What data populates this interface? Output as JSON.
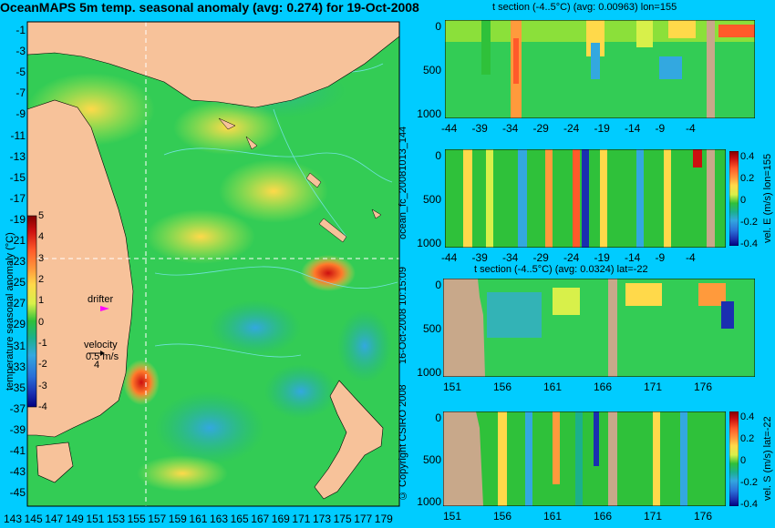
{
  "title": "OceanMAPS 5m temp. seasonal anomaly (avg: 0.274) for 19-Oct-2008",
  "map": {
    "lat_ticks": [
      "-1",
      "-3",
      "-5",
      "-7",
      "-9",
      "-11",
      "-13",
      "-15",
      "-17",
      "-19",
      "-21",
      "-23",
      "-25",
      "-27",
      "-29",
      "-31",
      "-33",
      "-35",
      "-37",
      "-39",
      "-41",
      "-43",
      "-45"
    ],
    "lon_ticks": [
      "143",
      "145",
      "147",
      "149",
      "151",
      "153",
      "155",
      "157",
      "159",
      "161",
      "163",
      "165",
      "167",
      "169",
      "171",
      "173",
      "175",
      "177",
      "179"
    ],
    "colorbar": {
      "label": "temperature seasonal anomaly (°C)",
      "ticks": [
        "5",
        "4",
        "3",
        "2",
        "1",
        "0",
        "-1",
        "-2",
        "-3",
        "-4"
      ],
      "colors": [
        "#800000",
        "#cc1010",
        "#ff5a2a",
        "#ff9a3c",
        "#ffd94a",
        "#d8f04a",
        "#8be03a",
        "#2fc13a",
        "#1bb08c",
        "#33a8e0",
        "#2a6fd8",
        "#1a2fb0",
        "#000080"
      ]
    },
    "drifter_label": "drifter",
    "velocity_label": "velocity",
    "velocity_value": "0.5 m/s",
    "velocity_scale": "4"
  },
  "panels": [
    {
      "title": "t section (-4..5°C) (avg: 0.00963) lon=155",
      "x_ticks": [
        "-44",
        "-39",
        "-34",
        "-29",
        "-24",
        "-19",
        "-14",
        "-9",
        "-4"
      ],
      "y_ticks": [
        "0",
        "500",
        "1000"
      ]
    },
    {
      "title": "",
      "x_ticks": [
        "-44",
        "-39",
        "-34",
        "-29",
        "-24",
        "-19",
        "-14",
        "-9",
        "-4"
      ],
      "y_ticks": [
        "0",
        "500",
        "1000"
      ],
      "colorbar_label": "vel. E (m/s) lon=155",
      "colorbar_ticks": [
        "0.4",
        "0.2",
        "0",
        "-0.2",
        "-0.4"
      ]
    },
    {
      "title": "t section (-4..5°C) (avg: 0.0324) lat=-22",
      "x_ticks": [
        "151",
        "156",
        "161",
        "166",
        "171",
        "176"
      ],
      "y_ticks": [
        "0",
        "500",
        "1000"
      ]
    },
    {
      "title": "",
      "x_ticks": [
        "151",
        "156",
        "161",
        "166",
        "171",
        "176"
      ],
      "y_ticks": [
        "0",
        "500",
        "1000"
      ],
      "colorbar_label": "vel. S (m/s) lat=-22",
      "colorbar_ticks": [
        "0.4",
        "0.2",
        "0",
        "-0.2",
        "-0.4"
      ]
    }
  ],
  "side_labels": {
    "forecast_id": "ocean_fc_20081013_144",
    "timestamp": "16-Oct-2008 10:15:09",
    "copyright": "© Copyright CSIRO 2008"
  },
  "colors": {
    "background": "#00ccff",
    "land": "#f7c29a",
    "section_land": "#c8a88a",
    "ocean_base": "#33cc55"
  }
}
